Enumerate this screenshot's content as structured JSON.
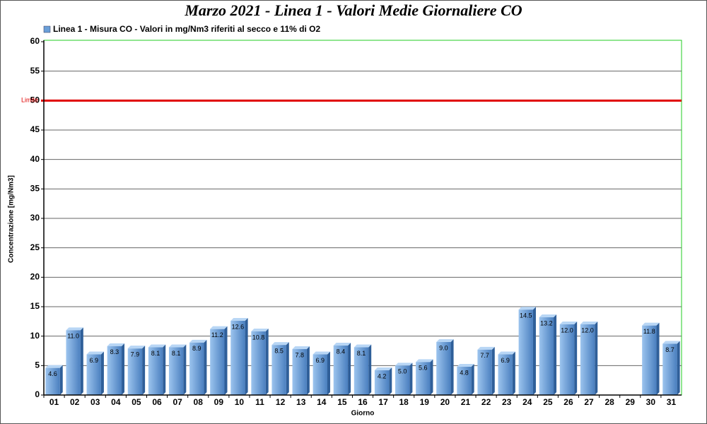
{
  "chart_data": {
    "type": "bar",
    "title": "Marzo 2021 - Linea 1 - Valori Medie Giornaliere CO",
    "x_label": "Giorno",
    "y_label": "Concentrazione [mg/Nm3]",
    "categories": [
      "01",
      "02",
      "03",
      "04",
      "05",
      "06",
      "07",
      "08",
      "09",
      "10",
      "11",
      "12",
      "13",
      "14",
      "15",
      "16",
      "17",
      "18",
      "19",
      "20",
      "21",
      "22",
      "23",
      "24",
      "25",
      "26",
      "27",
      "28",
      "29",
      "30",
      "31"
    ],
    "series": [
      {
        "name": "Linea 1 - Misura CO - Valori in mg/Nm3 riferiti al secco e 11% di O2",
        "color": "#6a9fd8",
        "values": [
          4.6,
          11.0,
          6.9,
          8.3,
          7.9,
          8.1,
          8.1,
          8.9,
          11.2,
          12.6,
          10.8,
          8.5,
          7.8,
          6.9,
          8.4,
          8.1,
          4.2,
          5.0,
          5.6,
          9.0,
          4.8,
          7.7,
          6.9,
          14.5,
          13.2,
          12.0,
          12.0,
          null,
          null,
          11.8,
          8.7
        ],
        "value_labels": [
          "4.6",
          "11.0",
          "6.9",
          "8.3",
          "7.9",
          "8.1",
          "8.1",
          "8.9",
          "11.2",
          "12.6",
          "10.8",
          "8.5",
          "7.8",
          "6.9",
          "8.4",
          "8.1",
          "4.2",
          "5.0",
          "5.6",
          "9.0",
          "4.8",
          "7.7",
          "6.9",
          "14.5",
          "13.2",
          "12.0",
          "12.0",
          null,
          null,
          "11.8",
          "8.7"
        ]
      }
    ],
    "limit": {
      "value": 50,
      "label": "Limite",
      "color": "#e00000"
    },
    "ylim": [
      0,
      60
    ],
    "yticks": [
      0,
      5,
      10,
      15,
      20,
      25,
      30,
      35,
      40,
      45,
      50,
      55,
      60
    ],
    "grid": true
  }
}
